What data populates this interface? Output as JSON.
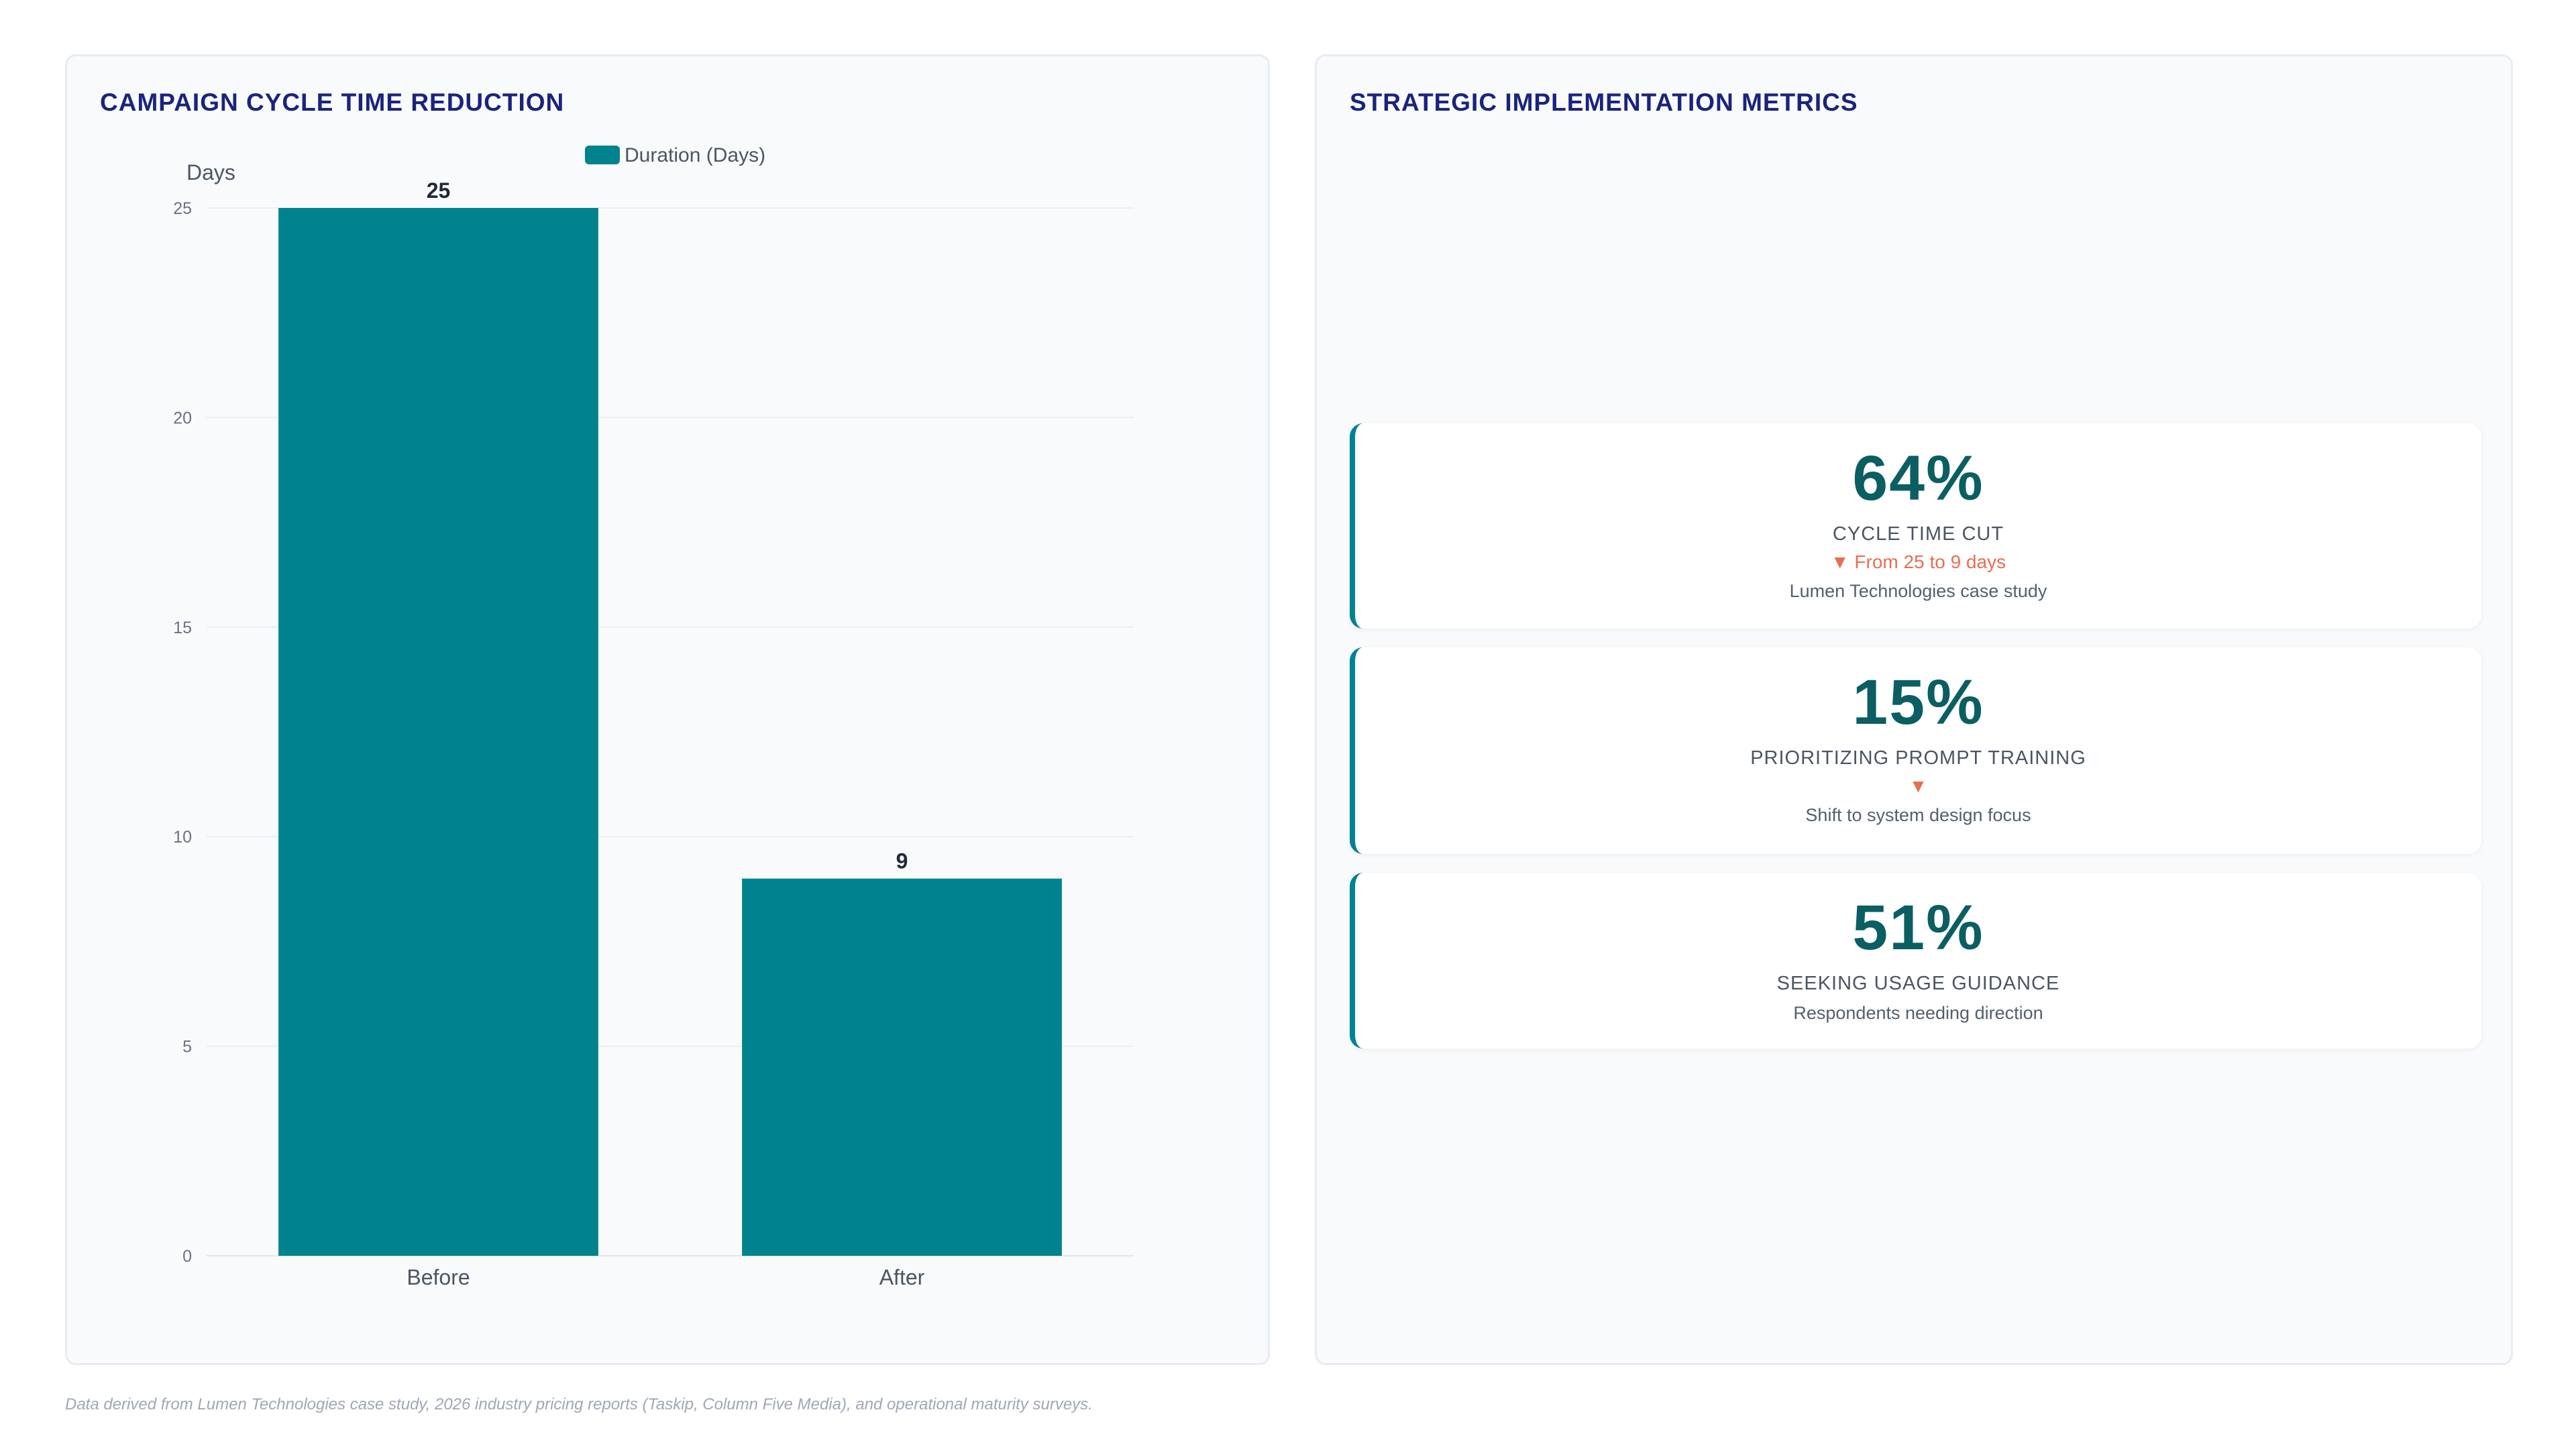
{
  "left_panel": {
    "title": "CAMPAIGN CYCLE TIME REDUCTION"
  },
  "right_panel": {
    "title": "STRATEGIC IMPLEMENTATION METRICS",
    "metrics": [
      {
        "value": "64%",
        "label": "CYCLE TIME CUT",
        "change": "▼ From 25 to 9 days",
        "note": "Lumen Technologies case study"
      },
      {
        "value": "15%",
        "label": "PRIORITIZING PROMPT TRAINING",
        "change": "▼",
        "note": "Shift to system design focus"
      },
      {
        "value": "51%",
        "label": "SEEKING USAGE GUIDANCE",
        "note": "Respondents needing direction"
      }
    ]
  },
  "chart_data": {
    "type": "bar",
    "title": "CAMPAIGN CYCLE TIME REDUCTION",
    "categories": [
      "Before",
      "After"
    ],
    "series": [
      {
        "name": "Duration (Days)",
        "values": [
          25,
          9
        ],
        "color": "#00838f"
      }
    ],
    "ylabel": "Days",
    "xlabel": "",
    "ylim": [
      0,
      25
    ],
    "yticks": [
      0,
      5,
      10,
      15,
      20,
      25
    ],
    "grid": true,
    "legend_position": "top",
    "data_labels": true
  },
  "colors": {
    "accent": "#00838f",
    "title": "#1a237e",
    "metric_value": "#0b5e62",
    "decrease": "#e76f51"
  },
  "footnote": "Data derived from Lumen Technologies case study, 2026 industry pricing reports (Taskip, Column Five Media), and operational maturity surveys."
}
